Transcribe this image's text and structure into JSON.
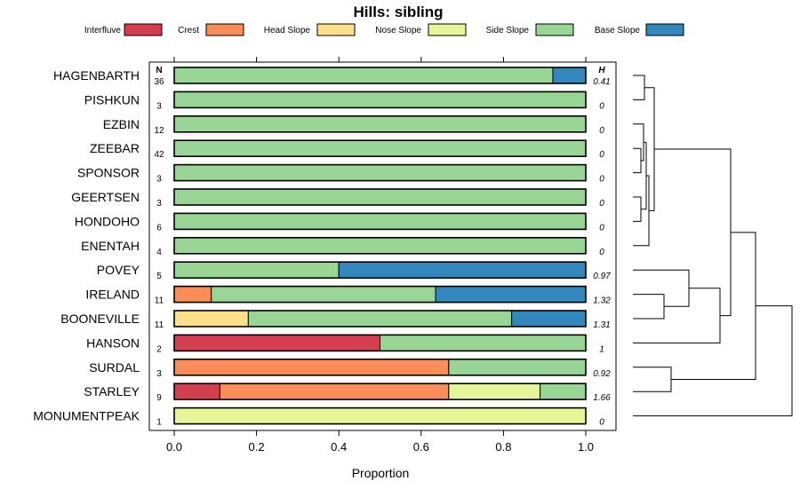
{
  "chart_data": {
    "type": "bar",
    "orientation": "horizontal",
    "stacked": true,
    "title": "Hills: sibling",
    "xlabel": "Proportion",
    "xlim": [
      0,
      1
    ],
    "xticks": [
      "0.0",
      "0.2",
      "0.4",
      "0.6",
      "0.8",
      "1.0"
    ],
    "n_header": "N",
    "h_header": "H",
    "legend": [
      {
        "name": "Interfluve",
        "color": "#d53e4f"
      },
      {
        "name": "Crest",
        "color": "#fc8d59"
      },
      {
        "name": "Head Slope",
        "color": "#fee08b"
      },
      {
        "name": "Nose Slope",
        "color": "#e6f598"
      },
      {
        "name": "Side Slope",
        "color": "#99d594"
      },
      {
        "name": "Base Slope",
        "color": "#3288bd"
      }
    ],
    "rows": [
      {
        "label": "HAGENBARTH",
        "n": "36",
        "h": "0.41",
        "values": [
          0,
          0,
          0,
          0,
          0.92,
          0.08
        ]
      },
      {
        "label": "PISHKUN",
        "n": "3",
        "h": "0",
        "values": [
          0,
          0,
          0,
          0,
          1,
          0
        ]
      },
      {
        "label": "EZBIN",
        "n": "12",
        "h": "0",
        "values": [
          0,
          0,
          0,
          0,
          1,
          0
        ]
      },
      {
        "label": "ZEEBAR",
        "n": "42",
        "h": "0",
        "values": [
          0,
          0,
          0,
          0,
          1,
          0
        ]
      },
      {
        "label": "SPONSOR",
        "n": "3",
        "h": "0",
        "values": [
          0,
          0,
          0,
          0,
          1,
          0
        ]
      },
      {
        "label": "GEERTSEN",
        "n": "3",
        "h": "0",
        "values": [
          0,
          0,
          0,
          0,
          1,
          0
        ]
      },
      {
        "label": "HONDOHO",
        "n": "6",
        "h": "0",
        "values": [
          0,
          0,
          0,
          0,
          1,
          0
        ]
      },
      {
        "label": "ENENTAH",
        "n": "4",
        "h": "0",
        "values": [
          0,
          0,
          0,
          0,
          1,
          0
        ]
      },
      {
        "label": "POVEY",
        "n": "5",
        "h": "0.97",
        "values": [
          0,
          0,
          0,
          0,
          0.4,
          0.6
        ]
      },
      {
        "label": "IRELAND",
        "n": "11",
        "h": "1.32",
        "values": [
          0,
          0.09,
          0,
          0,
          0.545,
          0.365
        ]
      },
      {
        "label": "BOONEVILLE",
        "n": "11",
        "h": "1.31",
        "values": [
          0,
          0,
          0.18,
          0,
          0.64,
          0.18
        ]
      },
      {
        "label": "HANSON",
        "n": "2",
        "h": "1",
        "values": [
          0.5,
          0,
          0,
          0,
          0.5,
          0
        ]
      },
      {
        "label": "SURDAL",
        "n": "3",
        "h": "0.92",
        "values": [
          0,
          0.667,
          0,
          0,
          0.333,
          0
        ]
      },
      {
        "label": "STARLEY",
        "n": "9",
        "h": "1.66",
        "values": [
          0.111,
          0.556,
          0,
          0.222,
          0.111,
          0
        ]
      },
      {
        "label": "MONUMENTPEAK",
        "n": "1",
        "h": "0",
        "values": [
          0,
          0,
          0,
          1,
          0,
          0
        ]
      }
    ]
  }
}
